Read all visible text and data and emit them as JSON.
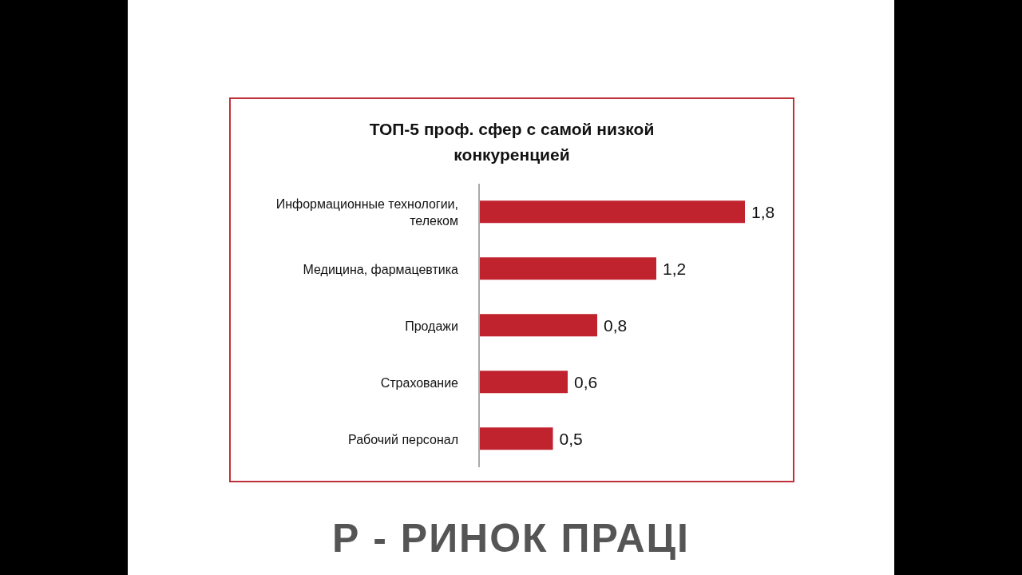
{
  "chart_data": {
    "type": "bar",
    "orientation": "horizontal",
    "title": "ТОП-5 проф. сфер с самой низкой конкуренцией",
    "categories": [
      "Информационные технологии, телеком",
      "Медицина, фармацевтика",
      "Продажи",
      "Страхование",
      "Рабочий персонал"
    ],
    "values": [
      1.8,
      1.2,
      0.8,
      0.6,
      0.5
    ],
    "value_labels": [
      "1,8",
      "1,2",
      "0,8",
      "0,6",
      "0,5"
    ],
    "color": "#c0222e",
    "annotations": [
      "Р - РИНОК ПРАЦІ"
    ]
  }
}
